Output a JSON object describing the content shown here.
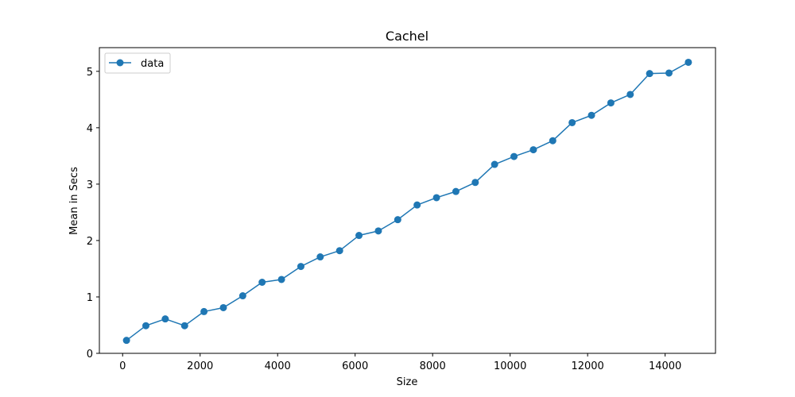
{
  "chart_data": {
    "type": "line",
    "title": "Cachel",
    "xlabel": "Size",
    "ylabel": "Mean in Secs",
    "xlim": [
      -600,
      15300
    ],
    "ylim": [
      0,
      5.42
    ],
    "xticks": [
      0,
      2000,
      4000,
      6000,
      8000,
      10000,
      12000,
      14000
    ],
    "yticks": [
      0,
      1,
      2,
      3,
      4,
      5
    ],
    "grid": false,
    "legend_position": "top-left",
    "color": "#1f77b4",
    "series": [
      {
        "name": "data",
        "marker": "circle",
        "x": [
          100,
          600,
          1100,
          1600,
          2100,
          2600,
          3100,
          3600,
          4100,
          4600,
          5100,
          5600,
          6100,
          6600,
          7100,
          7600,
          8100,
          8600,
          9100,
          9600,
          10100,
          10600,
          11100,
          11600,
          12100,
          12600,
          13100,
          13600,
          14100,
          14600
        ],
        "y": [
          0.23,
          0.49,
          0.61,
          0.49,
          0.74,
          0.81,
          1.02,
          1.26,
          1.31,
          1.54,
          1.71,
          1.82,
          2.09,
          2.17,
          2.37,
          2.63,
          2.76,
          2.87,
          3.03,
          3.35,
          3.49,
          3.61,
          3.77,
          4.09,
          4.22,
          4.44,
          4.59,
          4.96,
          4.97,
          5.16
        ]
      }
    ]
  }
}
